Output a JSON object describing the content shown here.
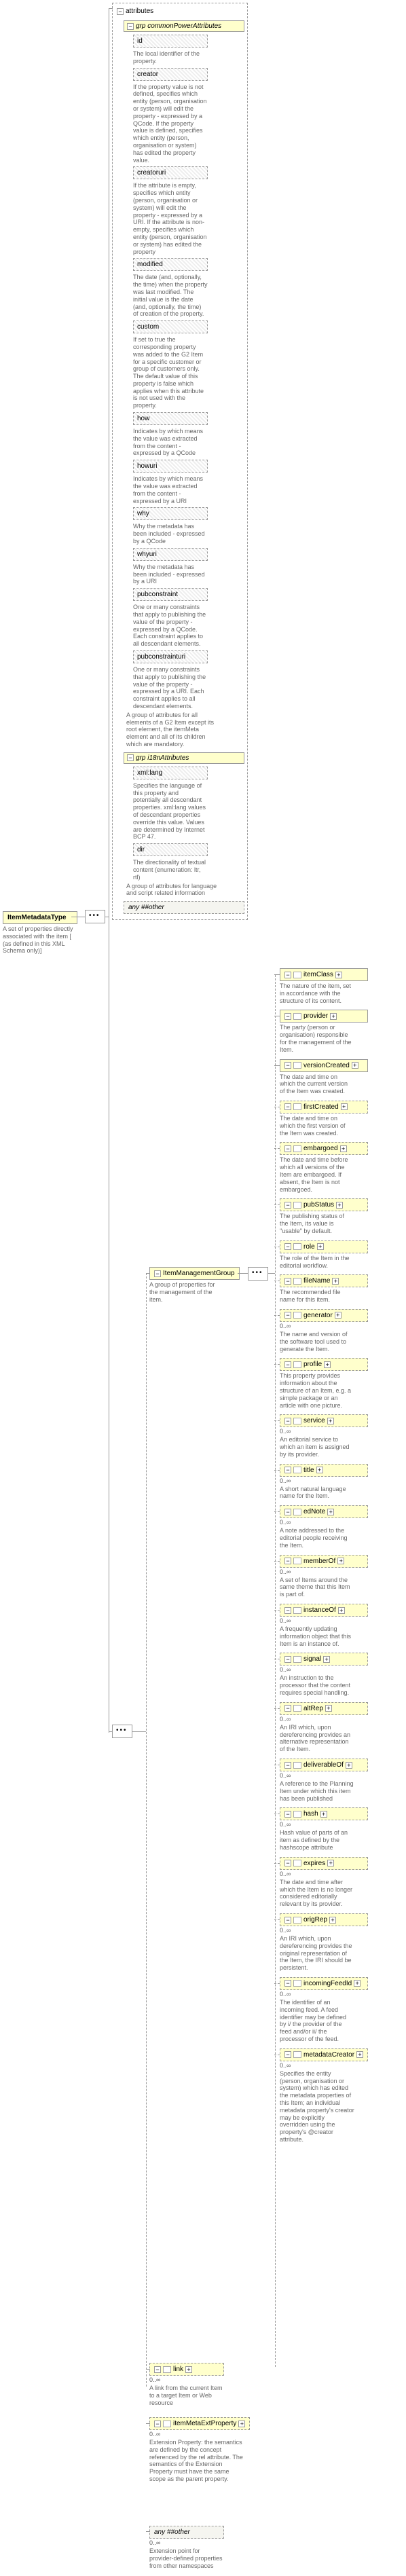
{
  "root": {
    "name": "ItemMetadataType",
    "desc": "A set of properties directly associated with the item [ (as defined in this XML Schema only)]"
  },
  "attributes_label": "attributes",
  "grp_common": {
    "label": "grp  commonPowerAttributes",
    "desc": "A group of attributes for all elements of a G2 Item except its root element, the itemMeta element and all of its children which are mandatory.",
    "items": [
      {
        "name": "id",
        "desc": "The local identifier of the property."
      },
      {
        "name": "creator",
        "desc": "If the property value is not defined, specifies which entity (person, organisation or system) will edit the property - expressed by a QCode. If the property value is defined, specifies which entity (person, organisation or system) has edited the property value."
      },
      {
        "name": "creatoruri",
        "desc": "If the attribute is empty, specifies which entity (person, organisation or system) will edit the property - expressed by a URI. If the attribute is non-empty, specifies which entity (person, organisation or system) has edited the property"
      },
      {
        "name": "modified",
        "desc": "The date (and, optionally, the time) when the property was last modified. The initial value is the date (and, optionally, the time) of creation of the property."
      },
      {
        "name": "custom",
        "desc": "If set to true the corresponding property was added to the G2 Item for a specific customer or group of customers only. The default value of this property is false which applies when this attribute is not used with the property."
      },
      {
        "name": "how",
        "desc": "Indicates by which means the value was extracted from the content - expressed by a QCode"
      },
      {
        "name": "howuri",
        "desc": "Indicates by which means the value was extracted from the content - expressed by a URI"
      },
      {
        "name": "why",
        "desc": "Why the metadata has been included - expressed by a QCode"
      },
      {
        "name": "whyuri",
        "desc": "Why the metadata has been included - expressed by a URI"
      },
      {
        "name": "pubconstraint",
        "desc": "One or many constraints that apply to publishing the value of the property - expressed by a QCode. Each constraint applies to all descendant elements."
      },
      {
        "name": "pubconstrainturi",
        "desc": "One or many constraints that apply to publishing the value of the property - expressed by a URI. Each constraint applies to all descendant elements."
      }
    ]
  },
  "grp_i18n": {
    "label": "grp  i18nAttributes",
    "desc": "A group of attributes for language and script related information",
    "items": [
      {
        "name": "xml:lang",
        "desc": "Specifies the language of this property and potentially all descendant properties. xml:lang values of descendant properties override this value. Values are determined by Internet BCP 47."
      },
      {
        "name": "dir",
        "desc": "The directionality of textual content (enumeration: ltr, rtl)"
      }
    ]
  },
  "any_other1": {
    "label": "any  ##other"
  },
  "mgmt_group": {
    "name": "ItemManagementGroup",
    "desc": "A group of properties for the management of the item."
  },
  "mgmt_items": [
    {
      "name": "itemClass",
      "desc": "The nature of the item, set in accordance with the structure of its content.",
      "dashed": false,
      "plus": true,
      "card": ""
    },
    {
      "name": "provider",
      "desc": "The party (person or organisation) responsible for the management of the Item.",
      "dashed": false,
      "plus": true,
      "card": ""
    },
    {
      "name": "versionCreated",
      "desc": "The date and time on which the current version of the Item was created.",
      "dashed": false,
      "plus": true,
      "card": ""
    },
    {
      "name": "firstCreated",
      "desc": "The date and time on which the first version of the Item was created.",
      "dashed": true,
      "plus": true,
      "card": ""
    },
    {
      "name": "embargoed",
      "desc": "The date and time before which all versions of the Item are embargoed. If absent, the Item is not embargoed.",
      "dashed": true,
      "plus": true,
      "card": ""
    },
    {
      "name": "pubStatus",
      "desc": "The publishing status of the Item, its value is \"usable\" by default.",
      "dashed": true,
      "plus": true,
      "card": ""
    },
    {
      "name": "role",
      "desc": "The role of the Item in the editorial workflow.",
      "dashed": true,
      "plus": true,
      "card": ""
    },
    {
      "name": "fileName",
      "desc": "The recommended file name for this item.",
      "dashed": true,
      "plus": true,
      "card": ""
    },
    {
      "name": "generator",
      "desc": "The name and version of the software tool used to generate the Item.",
      "dashed": true,
      "plus": true,
      "card": "0..∞"
    },
    {
      "name": "profile",
      "desc": "This property provides information about the structure of an Item, e.g. a simple package or an article with one picture.",
      "dashed": true,
      "plus": true,
      "card": ""
    },
    {
      "name": "service",
      "desc": "An editorial service to which an item is assigned by its provider.",
      "dashed": true,
      "plus": true,
      "card": "0..∞"
    },
    {
      "name": "title",
      "desc": "A short natural language name for the Item.",
      "dashed": true,
      "plus": true,
      "card": "0..∞"
    },
    {
      "name": "edNote",
      "desc": "A note addressed to the editorial people receiving the Item.",
      "dashed": true,
      "plus": true,
      "card": "0..∞"
    },
    {
      "name": "memberOf",
      "desc": "A set of Items around the same theme that this Item is part of.",
      "dashed": true,
      "plus": true,
      "card": "0..∞"
    },
    {
      "name": "instanceOf",
      "desc": "A frequently updating information object that this Item is an instance of.",
      "dashed": true,
      "plus": true,
      "card": "0..∞"
    },
    {
      "name": "signal",
      "desc": "An instruction to the processor that the content requires special handling.",
      "dashed": true,
      "plus": true,
      "card": "0..∞"
    },
    {
      "name": "altRep",
      "desc": "An IRI which, upon dereferencing provides an alternative representation of the Item.",
      "dashed": true,
      "plus": true,
      "card": "0..∞"
    },
    {
      "name": "deliverableOf",
      "desc": "A reference to the Planning Item under which this item has been published",
      "dashed": true,
      "plus": true,
      "card": "0..∞"
    },
    {
      "name": "hash",
      "desc": "Hash value of parts of an item as defined by the hashscope attribute",
      "dashed": true,
      "plus": true,
      "card": "0..∞"
    },
    {
      "name": "expires",
      "desc": "The date and time after which the Item is no longer considered editorially relevant by its provider.",
      "dashed": true,
      "plus": true,
      "card": "0..∞"
    },
    {
      "name": "origRep",
      "desc": "An IRI which, upon dereferencing provides the original representation of the Item, the IRI should be persistent.",
      "dashed": true,
      "plus": true,
      "card": "0..∞"
    },
    {
      "name": "incomingFeedId",
      "desc": "The identifier of an incoming feed. A feed identifier may be defined by i/ the provider of the feed and/or ii/ the processor of the feed.",
      "dashed": true,
      "plus": true,
      "card": "0..∞"
    },
    {
      "name": "metadataCreator",
      "desc": "Specifies the entity (person, organisation or system) which has edited the metadata properties of this Item; an individual metadata property's creator may be explicitly overridden using the property's @creator attribute.",
      "dashed": true,
      "plus": true,
      "card": "0..∞"
    }
  ],
  "link": {
    "name": "link",
    "desc": "A link from the current Item to a target Item or Web resource",
    "card": "0..∞"
  },
  "ext": {
    "name": "itemMetaExtProperty",
    "desc": "Extension Property: the semantics are defined by the concept referenced by the rel attribute. The semantics of the Extension Property must have the same scope as the parent property.",
    "card": "0..∞"
  },
  "any_other2": {
    "label": "any  ##other",
    "desc": "Extension point for provider-defined properties from other namespaces",
    "card": "0..∞"
  }
}
